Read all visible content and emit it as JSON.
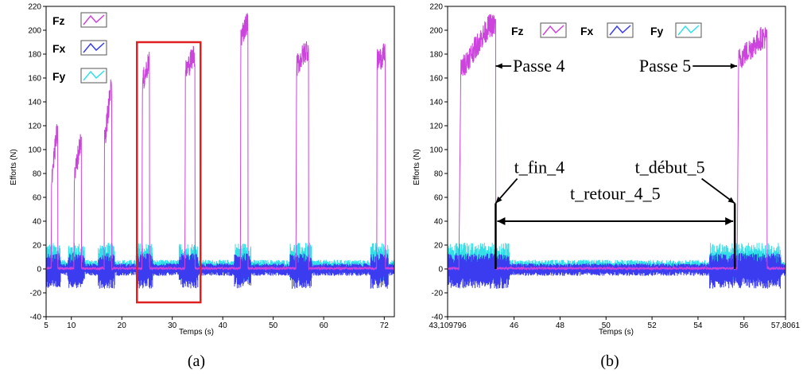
{
  "chart_data": [
    {
      "panel": "a",
      "type": "line",
      "caption": "(a)",
      "xlabel": "Temps (s)",
      "ylabel": "Efforts (N)",
      "xlim": [
        5,
        74
      ],
      "ylim": [
        -40,
        220
      ],
      "xticks": [
        "5",
        "10",
        "20",
        "30",
        "40",
        "50",
        "60",
        "72"
      ],
      "xtick_values": [
        5,
        10,
        20,
        30,
        40,
        50,
        60,
        72
      ],
      "yticks": [
        -40,
        -20,
        0,
        20,
        40,
        60,
        80,
        100,
        120,
        140,
        160,
        180,
        200,
        220
      ],
      "grid": false,
      "legend": {
        "position": "top-left",
        "layout": "vertical"
      },
      "series": [
        {
          "name": "Fz",
          "color": "#cc44dd",
          "passes": [
            {
              "start": 6.0,
              "end": 7.3,
              "peak": 118,
              "rise": 70
            },
            {
              "start": 10.5,
              "end": 12.0,
              "peak": 112,
              "rise": 70
            },
            {
              "start": 16.5,
              "end": 18.0,
              "peak": 155,
              "rise": 100
            },
            {
              "start": 24.0,
              "end": 25.5,
              "peak": 178,
              "rise": 150
            },
            {
              "start": 32.5,
              "end": 34.5,
              "peak": 185,
              "rise": 160
            },
            {
              "start": 43.5,
              "end": 45.0,
              "peak": 212,
              "rise": 190
            },
            {
              "start": 54.5,
              "end": 57.0,
              "peak": 190,
              "rise": 165
            },
            {
              "start": 70.5,
              "end": 72.2,
              "peak": 185,
              "rise": 170
            }
          ]
        },
        {
          "name": "Fx",
          "color": "#3b3bf0",
          "amplitude_band": [
            -15,
            12
          ]
        },
        {
          "name": "Fy",
          "color": "#33e0e8",
          "amplitude_band": [
            -10,
            20
          ]
        }
      ],
      "highlight_box": {
        "x": [
          23.0,
          35.6
        ],
        "y": [
          -28,
          190
        ],
        "color": "#e02020"
      }
    },
    {
      "panel": "b",
      "type": "line",
      "caption": "(b)",
      "xlabel": "Temps (s)",
      "ylabel": "Efforts (N)",
      "xlim": [
        43.109796,
        57.80613
      ],
      "ylim": [
        -40,
        220
      ],
      "xticks": [
        "43,109796",
        "46",
        "48",
        "50",
        "52",
        "54",
        "56",
        "57,8061"
      ],
      "xtick_values": [
        43.109796,
        46,
        48,
        50,
        52,
        54,
        56,
        57.80613
      ],
      "yticks": [
        -40,
        -20,
        0,
        20,
        40,
        60,
        80,
        100,
        120,
        140,
        160,
        180,
        200,
        220
      ],
      "grid": false,
      "legend": {
        "position": "top-center",
        "layout": "horizontal"
      },
      "series": [
        {
          "name": "Fz",
          "color": "#cc44dd",
          "passes": [
            {
              "start": 43.6,
              "end": 45.2,
              "peak": 210,
              "rise": 160
            },
            {
              "start": 55.7,
              "end": 57.0,
              "peak": 200,
              "rise": 170
            }
          ]
        },
        {
          "name": "Fx",
          "color": "#3b3bf0",
          "amplitude_band": [
            -15,
            12
          ]
        },
        {
          "name": "Fy",
          "color": "#33e0e8",
          "amplitude_band": [
            -10,
            20
          ]
        }
      ],
      "annotations": [
        {
          "text": "Passe 4",
          "x": 45.95,
          "y": 170,
          "arrow_to": [
            45.2,
            170
          ]
        },
        {
          "text": "Passe 5",
          "x": 53.7,
          "y": 170,
          "arrow_to": [
            55.7,
            170
          ]
        },
        {
          "text": "t_fin_4",
          "x": 46.0,
          "y": 85,
          "arrow_to": [
            45.2,
            55
          ]
        },
        {
          "text": "t_début_5",
          "x": 54.3,
          "y": 85,
          "arrow_to": [
            55.6,
            55
          ]
        },
        {
          "text": "t_retour_4_5",
          "x": 50.4,
          "y": 63
        }
      ],
      "dimension": {
        "from": 45.2,
        "to": 55.6,
        "y": 40
      }
    }
  ]
}
